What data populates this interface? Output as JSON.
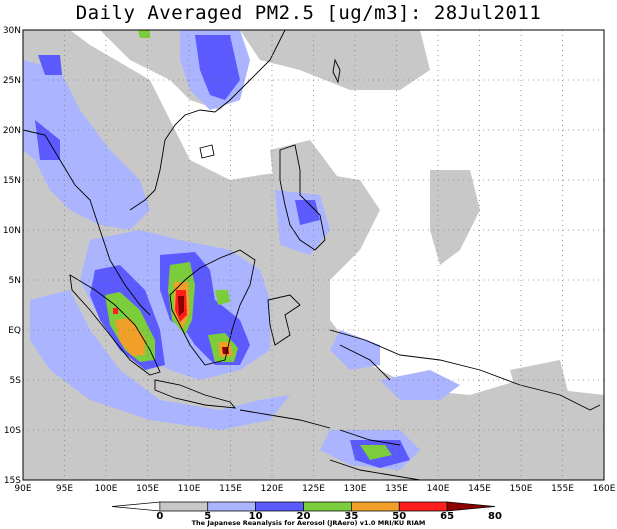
{
  "title": "Daily Averaged PM2.5 [ug/m3]: 28Jul2011",
  "credit": "The Japanese Reanalysis for Aerosol (JRAero) v1.0 MRI/KU RIAM",
  "map": {
    "lon_range": [
      90,
      160
    ],
    "lat_range": [
      -15,
      30
    ],
    "lon_ticks": [
      "90E",
      "95E",
      "100E",
      "105E",
      "110E",
      "115E",
      "120E",
      "125E",
      "130E",
      "135E",
      "140E",
      "145E",
      "150E",
      "155E",
      "160E"
    ],
    "lat_ticks": [
      "30N",
      "25N",
      "20N",
      "15N",
      "10N",
      "5N",
      "EQ",
      "5S",
      "10S",
      "15S"
    ],
    "gridlines": "dotted"
  },
  "colorbar": {
    "labels": [
      "0",
      "5",
      "10",
      "20",
      "35",
      "50",
      "65",
      "80"
    ],
    "colors": [
      "#ffffff",
      "#c8c8c8",
      "#aab4ff",
      "#5a5aff",
      "#7ccd3c",
      "#f0a028",
      "#ff1e1e",
      "#8b0000"
    ]
  }
}
